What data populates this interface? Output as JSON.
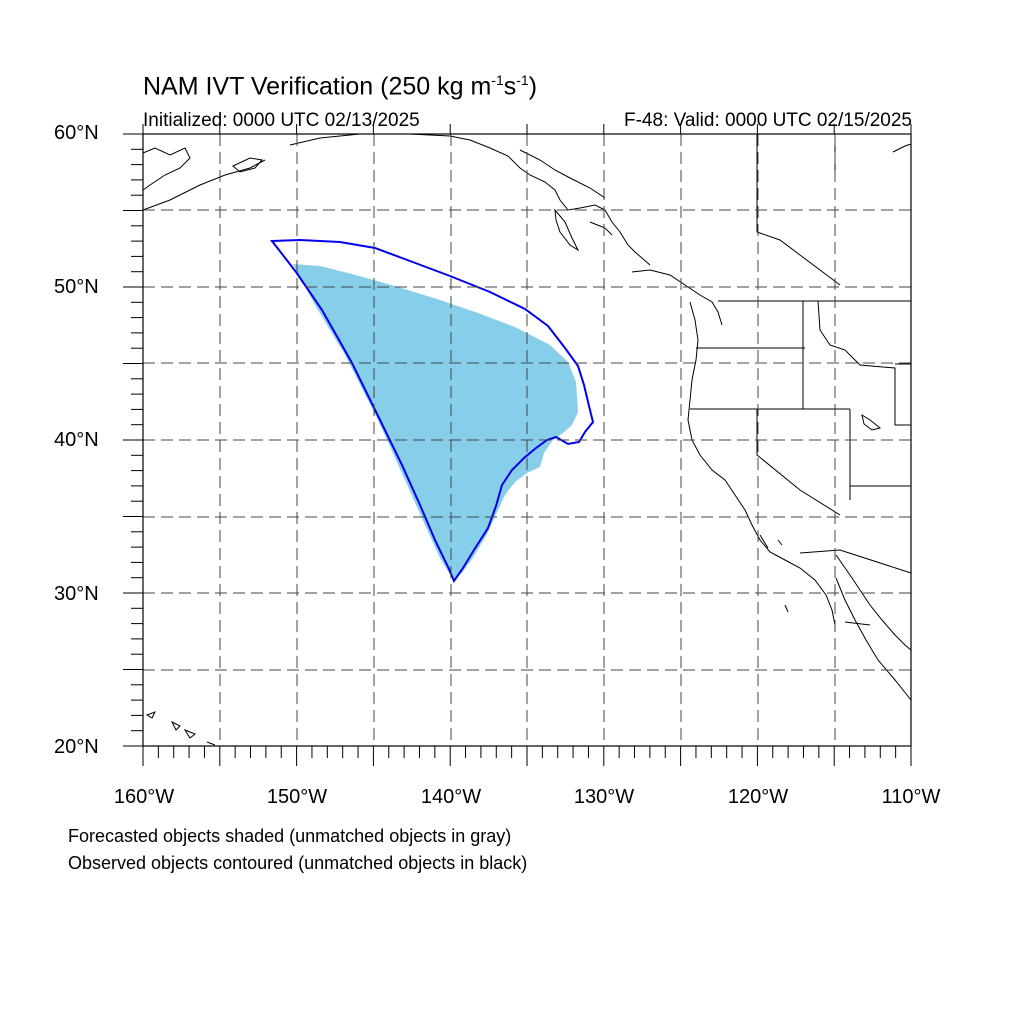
{
  "title": {
    "prefix": "NAM IVT Verification (250 kg m",
    "exp1": "-1",
    "mid": "s",
    "exp2": "-1",
    "suffix": ")"
  },
  "initialized": "Initialized: 0000 UTC 02/13/2025",
  "valid": "F-48: Valid: 0000 UTC 02/15/2025",
  "lat_labels": [
    "60°N",
    "50°N",
    "40°N",
    "30°N",
    "20°N"
  ],
  "lon_labels": [
    "160°W",
    "150°W",
    "140°W",
    "130°W",
    "120°W",
    "110°W"
  ],
  "notes": {
    "line1": "Forecasted objects shaded (unmatched objects in gray)",
    "line2": "Observed objects contoured (unmatched objects in black)"
  },
  "map": {
    "projection": "cylindrical-equidistant",
    "lon_range": [
      -160,
      -110
    ],
    "lat_range": [
      20,
      60
    ],
    "grid_interval_deg": 5,
    "colors": {
      "forecast_fill": "#87ceeb",
      "observed_contour": "#0000ee",
      "coastline": "#000000",
      "grid": "#444444"
    }
  }
}
